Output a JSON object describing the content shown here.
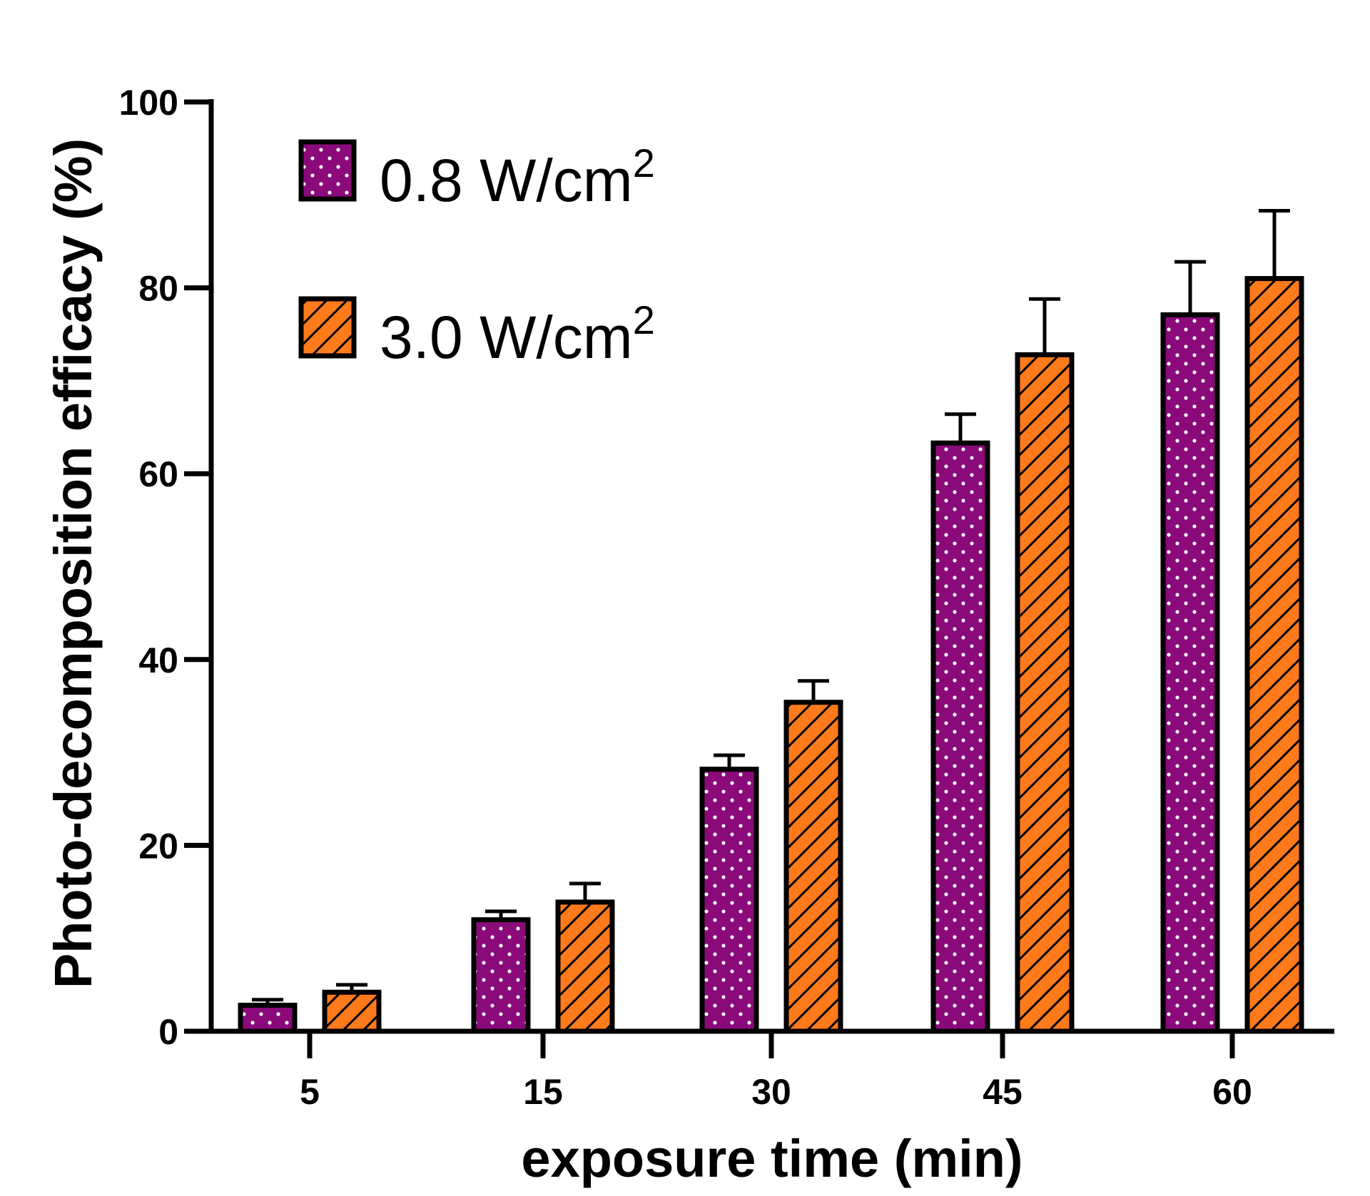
{
  "chart_data": {
    "type": "bar",
    "title": "",
    "xlabel": "exposure time (min)",
    "ylabel": "Photo-decomposition efficacy (%)",
    "ylim": [
      0,
      100
    ],
    "yticks": [
      "0",
      "20",
      "40",
      "60",
      "80",
      "100"
    ],
    "categories": [
      "5",
      "15",
      "30",
      "45",
      "60"
    ],
    "series": [
      {
        "name": "0.8 W/cm",
        "name_sup": "2",
        "values": [
          2.8,
          12,
          28.2,
          63.3,
          77.1
        ],
        "errors": [
          0.6,
          0.9,
          1.5,
          3.1,
          5.7
        ],
        "color": "#8B0A7A",
        "pattern": "dots"
      },
      {
        "name": "3.0 W/cm",
        "name_sup": "2",
        "values": [
          4.2,
          13.9,
          35.4,
          72.8,
          81
        ],
        "errors": [
          0.8,
          2.0,
          2.3,
          6.0,
          7.3
        ],
        "color": "#FF7A1A",
        "pattern": "hatch"
      }
    ],
    "legend_position": "top-left",
    "grid": false
  }
}
